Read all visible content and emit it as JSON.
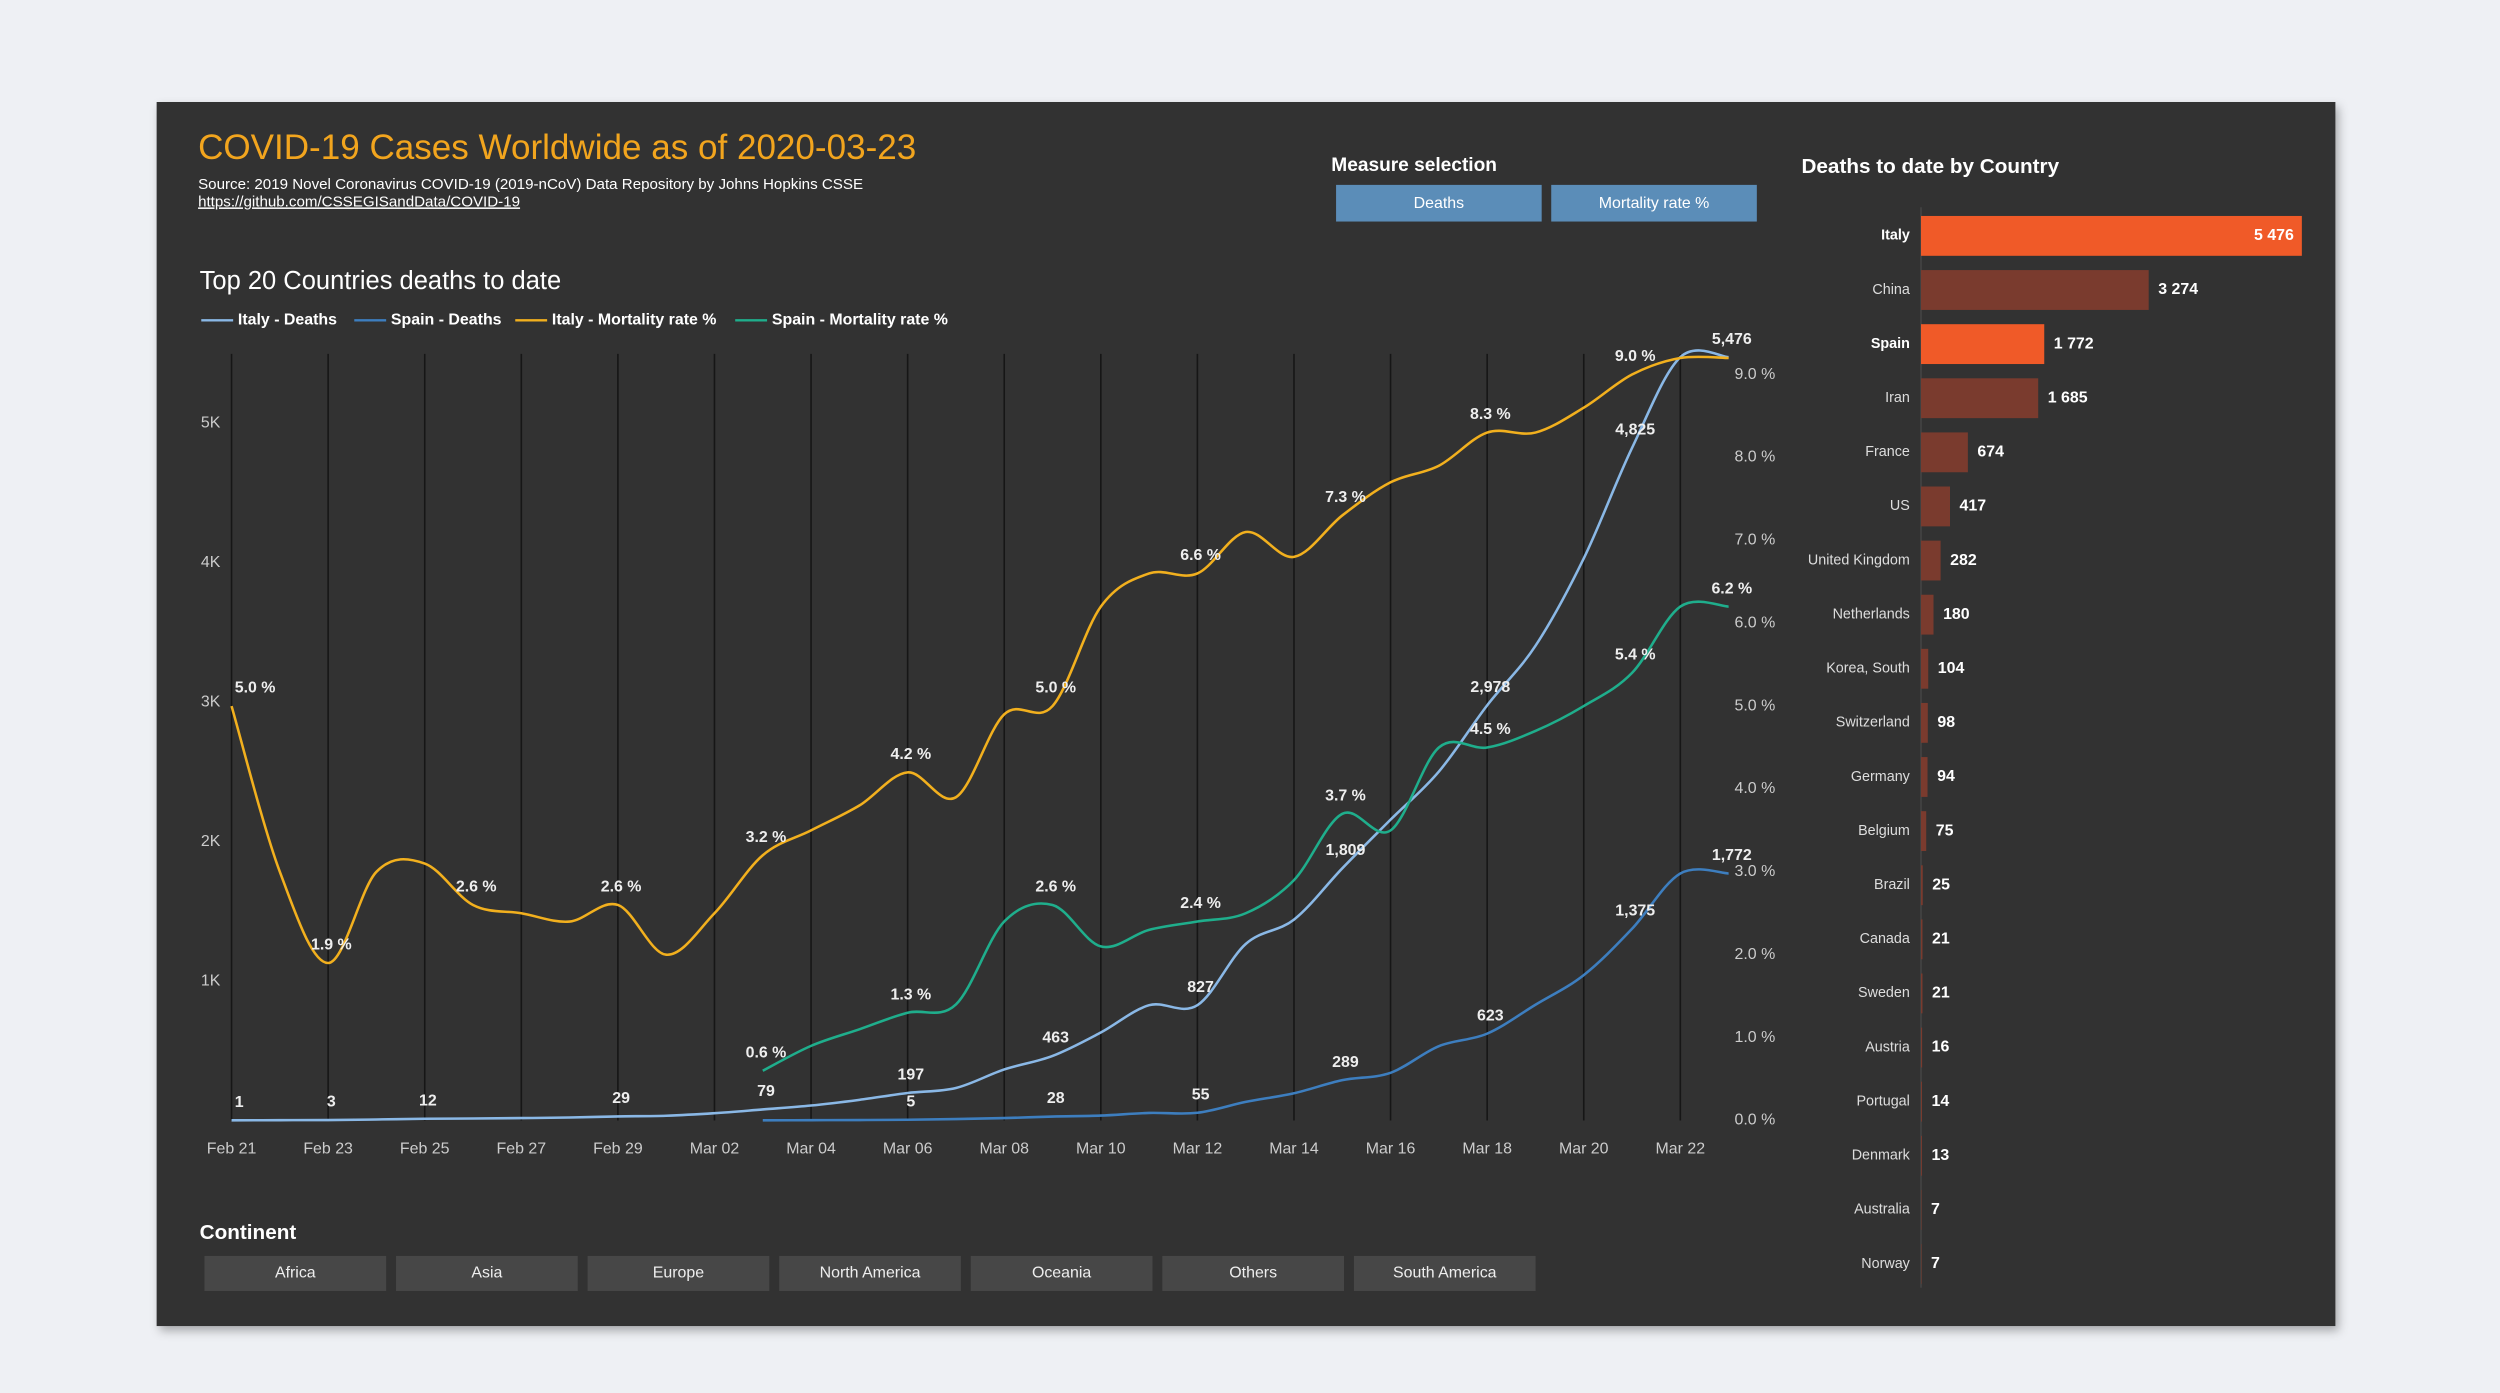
{
  "header": {
    "title": "COVID-19 Cases Worldwide as of 2020-03-23",
    "source": "Source: 2019 Novel Coronavirus COVID-19 (2019-nCoV) Data Repository by Johns Hopkins CSSE",
    "link": "https://github.com/CSSEGISandData/COVID-19"
  },
  "measure_selection": {
    "title": "Measure selection",
    "options": [
      "Deaths",
      "Mortality rate %"
    ]
  },
  "continent": {
    "title": "Continent",
    "options": [
      "Africa",
      "Asia",
      "Europe",
      "North America",
      "Oceania",
      "Others",
      "South America"
    ]
  },
  "chart_data": [
    {
      "type": "line",
      "title": "Top 20 Countries deaths to date",
      "categories": [
        "Feb 21",
        null,
        "Feb 23",
        null,
        "Feb 25",
        null,
        "Feb 27",
        null,
        "Feb 29",
        null,
        "Mar 02",
        null,
        "Mar 04",
        null,
        "Mar 06",
        null,
        "Mar 08",
        null,
        "Mar 10",
        null,
        "Mar 12",
        null,
        "Mar 14",
        null,
        "Mar 16",
        null,
        "Mar 18",
        null,
        "Mar 20",
        null,
        "Mar 22",
        null
      ],
      "ylim": [
        0,
        5500
      ],
      "yticks": [
        {
          "value": 1000,
          "label": "1K"
        },
        {
          "value": 2000,
          "label": "2K"
        },
        {
          "value": 3000,
          "label": "3K"
        },
        {
          "value": 4000,
          "label": "4K"
        },
        {
          "value": 5000,
          "label": "5K"
        }
      ],
      "y2lim": [
        0,
        9.25
      ],
      "y2ticks": [
        {
          "value": 0,
          "label": "0.0 %"
        },
        {
          "value": 1,
          "label": "1.0 %"
        },
        {
          "value": 2,
          "label": "2.0 %"
        },
        {
          "value": 3,
          "label": "3.0 %"
        },
        {
          "value": 4,
          "label": "4.0 %"
        },
        {
          "value": 5,
          "label": "5.0 %"
        },
        {
          "value": 6,
          "label": "6.0 %"
        },
        {
          "value": 7,
          "label": "7.0 %"
        },
        {
          "value": 8,
          "label": "8.0 %"
        },
        {
          "value": 9,
          "label": "9.0 %"
        }
      ],
      "grid": "vertical",
      "series": [
        {
          "name": "Italy - Deaths",
          "color": "#8ab8e6",
          "values": [
            1,
            2,
            3,
            7,
            12,
            14,
            17,
            21,
            29,
            34,
            52,
            79,
            107,
            148,
            197,
            233,
            366,
            463,
            631,
            827,
            827,
            1266,
            1441,
            1809,
            2158,
            2503,
            2978,
            3405,
            4032,
            4825,
            5476,
            5476
          ],
          "value_labels": [
            "1",
            null,
            "3",
            null,
            "12",
            null,
            null,
            null,
            "29",
            null,
            null,
            "79",
            null,
            null,
            "197",
            null,
            null,
            "463",
            null,
            null,
            "827",
            null,
            null,
            "1,809",
            null,
            null,
            "2,978",
            null,
            null,
            "4,825",
            null,
            "5,476"
          ]
        },
        {
          "name": "Spain - Deaths",
          "color": "#3d7ebf",
          "values": [
            null,
            null,
            null,
            null,
            null,
            null,
            null,
            null,
            null,
            null,
            null,
            1,
            2,
            3,
            5,
            10,
            17,
            28,
            35,
            54,
            55,
            133,
            195,
            289,
            342,
            533,
            623,
            830,
            1043,
            1375,
            1772,
            1772
          ],
          "value_labels": [
            null,
            null,
            null,
            null,
            null,
            null,
            null,
            null,
            null,
            null,
            null,
            null,
            null,
            null,
            "5",
            null,
            null,
            "28",
            null,
            null,
            "55",
            null,
            null,
            "289",
            null,
            null,
            "623",
            null,
            null,
            "1,375",
            null,
            "1,772"
          ]
        },
        {
          "name": "Italy - Mortality rate %",
          "color": "#f2b01e",
          "axis": "y2",
          "values": [
            5.0,
            3.0,
            1.9,
            3.0,
            3.1,
            2.6,
            2.5,
            2.4,
            2.6,
            2.0,
            2.5,
            3.2,
            3.5,
            3.8,
            4.2,
            3.9,
            4.9,
            5.0,
            6.2,
            6.6,
            6.6,
            7.1,
            6.8,
            7.3,
            7.7,
            7.9,
            8.3,
            8.3,
            8.6,
            9.0,
            9.2,
            9.2
          ],
          "value_labels": [
            "5.0 %",
            null,
            "1.9 %",
            null,
            null,
            "2.6 %",
            null,
            null,
            "2.6 %",
            null,
            null,
            "3.2 %",
            null,
            null,
            "4.2 %",
            null,
            null,
            "5.0 %",
            null,
            null,
            "6.6 %",
            null,
            null,
            "7.3 %",
            null,
            null,
            "8.3 %",
            null,
            null,
            "9.0 %",
            null,
            null
          ]
        },
        {
          "name": "Spain - Mortality rate %",
          "color": "#1fae8c",
          "axis": "y2",
          "values": [
            null,
            null,
            null,
            null,
            null,
            null,
            null,
            null,
            null,
            null,
            null,
            0.6,
            0.9,
            1.1,
            1.3,
            1.4,
            2.4,
            2.6,
            2.1,
            2.3,
            2.4,
            2.5,
            2.9,
            3.7,
            3.5,
            4.5,
            4.5,
            4.7,
            5.0,
            5.4,
            6.2,
            6.2
          ],
          "value_labels": [
            null,
            null,
            null,
            null,
            null,
            null,
            null,
            null,
            null,
            null,
            null,
            "0.6 %",
            null,
            null,
            "1.3 %",
            null,
            null,
            "2.6 %",
            null,
            null,
            "2.4 %",
            null,
            null,
            "3.7 %",
            null,
            null,
            "4.5 %",
            null,
            null,
            "5.4 %",
            null,
            "6.2 %"
          ]
        }
      ]
    },
    {
      "type": "bar",
      "orientation": "horizontal",
      "title": "Deaths to date by Country",
      "categories": [
        "Italy",
        "China",
        "Spain",
        "Iran",
        "France",
        "US",
        "United Kingdom",
        "Netherlands",
        "Korea, South",
        "Switzerland",
        "Germany",
        "Belgium",
        "Brazil",
        "Canada",
        "Sweden",
        "Austria",
        "Portugal",
        "Denmark",
        "Australia",
        "Norway"
      ],
      "values": [
        5476,
        3274,
        1772,
        1685,
        674,
        417,
        282,
        180,
        104,
        98,
        94,
        75,
        25,
        21,
        21,
        16,
        14,
        13,
        7,
        7
      ],
      "value_labels": [
        "5 476",
        "3 274",
        "1 772",
        "1 685",
        "674",
        "417",
        "282",
        "180",
        "104",
        "98",
        "94",
        "75",
        "25",
        "21",
        "21",
        "16",
        "14",
        "13",
        "7",
        "7"
      ],
      "colors": [
        "#f05a28",
        "#7a3b2e",
        "#f05a28",
        "#7a3b2e",
        "#7a3b2e",
        "#7a3b2e",
        "#7a3b2e",
        "#7a3b2e",
        "#7a3b2e",
        "#7a3b2e",
        "#7a3b2e",
        "#7a3b2e",
        "#7a3b2e",
        "#7a3b2e",
        "#7a3b2e",
        "#7a3b2e",
        "#7a3b2e",
        "#7a3b2e",
        "#7a3b2e",
        "#7a3b2e"
      ],
      "xlim": [
        0,
        5500
      ]
    }
  ]
}
